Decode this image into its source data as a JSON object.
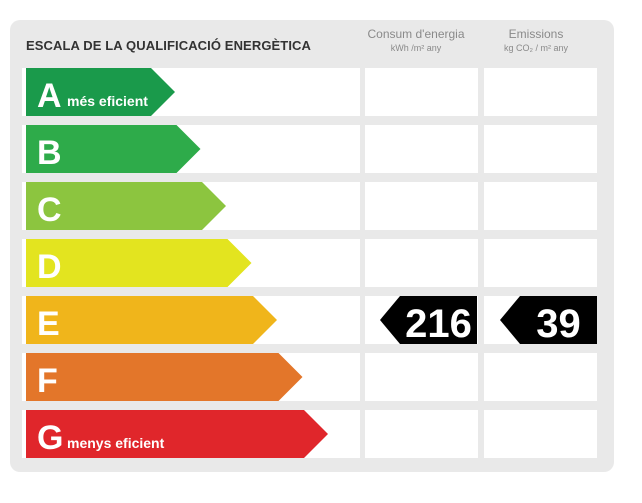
{
  "title": "ESCALA DE LA QUALIFICACIÓ ENERGÈTICA",
  "columns": {
    "consum": {
      "label": "Consum d'energia",
      "unit": "kWh /m² any"
    },
    "emissions": {
      "label": "Emissions",
      "unit": "kg CO₂ / m² any"
    }
  },
  "ratings": [
    {
      "letter": "A",
      "desc": "més eficient",
      "color": "#1a9a4b"
    },
    {
      "letter": "B",
      "desc": "",
      "color": "#2eab4a"
    },
    {
      "letter": "C",
      "desc": "",
      "color": "#8cc53f"
    },
    {
      "letter": "D",
      "desc": "",
      "color": "#e3e41f"
    },
    {
      "letter": "E",
      "desc": "",
      "color": "#f0b51b"
    },
    {
      "letter": "F",
      "desc": "",
      "color": "#e3762a"
    },
    {
      "letter": "G",
      "desc": "menys eficient",
      "color": "#e0262b"
    }
  ],
  "result": {
    "rating_index": 4,
    "consum_value": "216",
    "emissions_value": "39"
  }
}
